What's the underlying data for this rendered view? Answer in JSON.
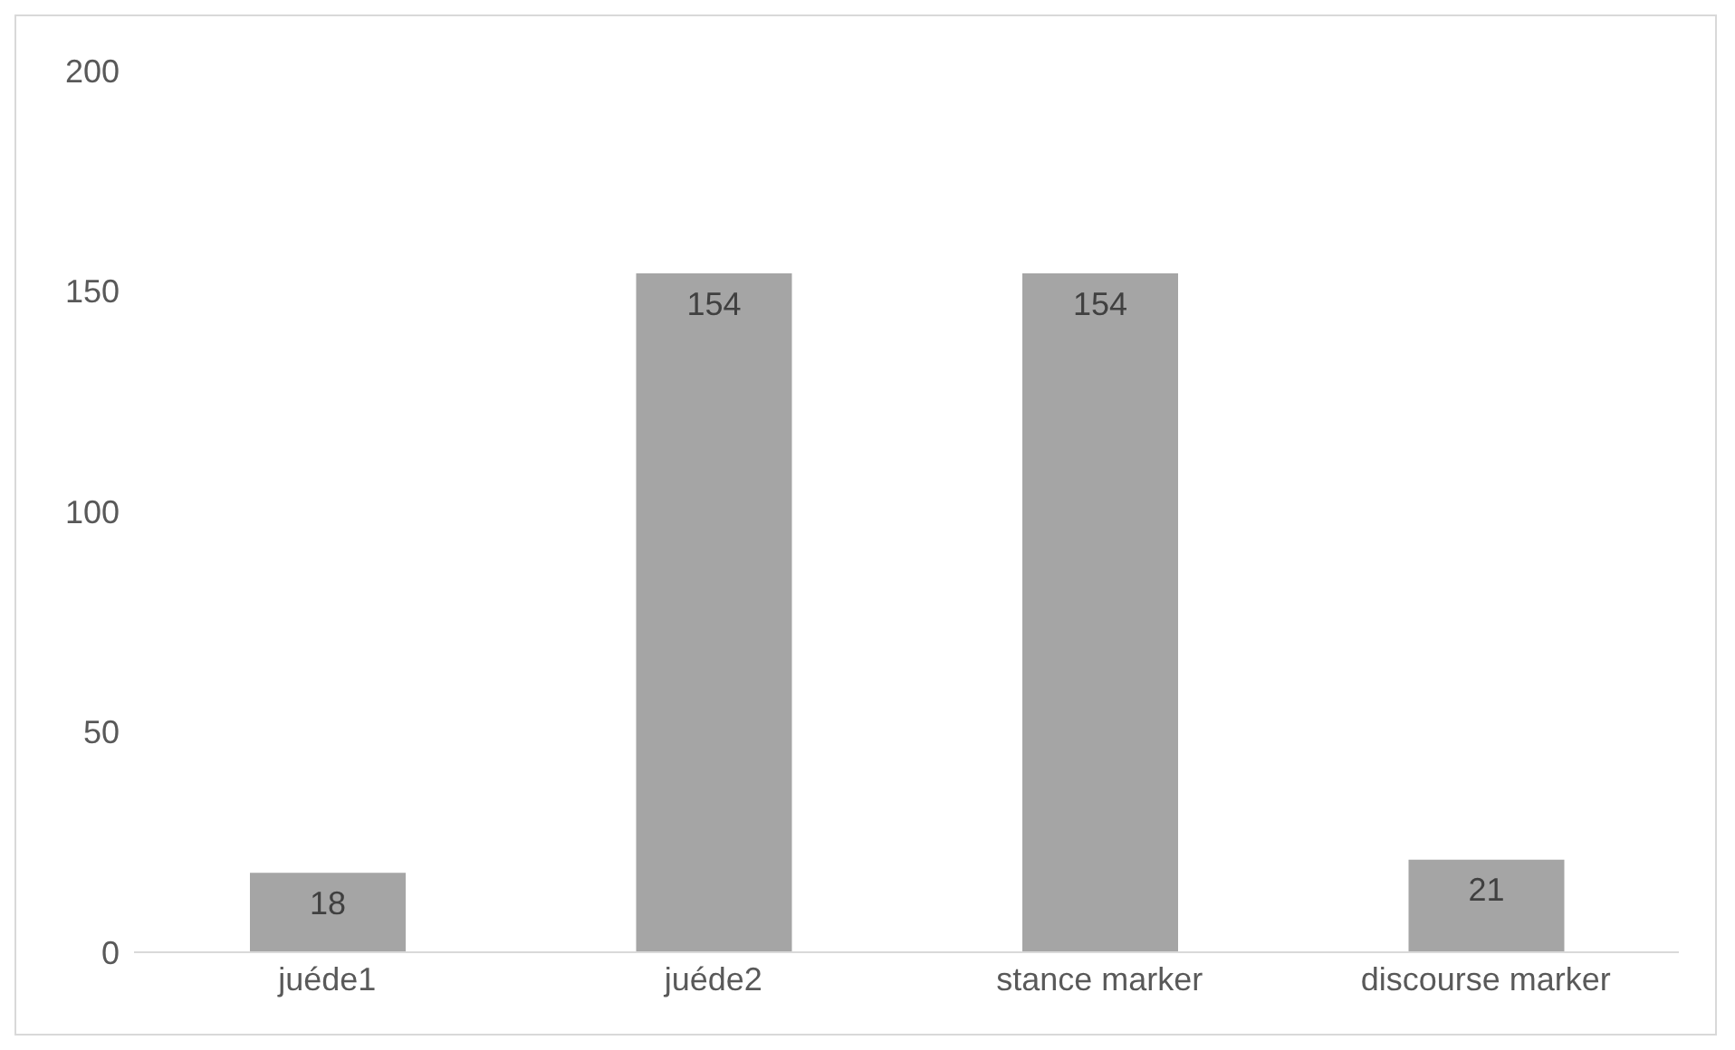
{
  "chart_data": {
    "type": "bar",
    "categories": [
      "juéde1",
      "juéde2",
      "stance marker",
      "discourse marker"
    ],
    "values": [
      18,
      154,
      154,
      21
    ],
    "color": "#a5a5a5",
    "ylim": [
      0,
      200
    ],
    "yticks": [
      0,
      50,
      100,
      150,
      200
    ],
    "data_labels": true
  }
}
